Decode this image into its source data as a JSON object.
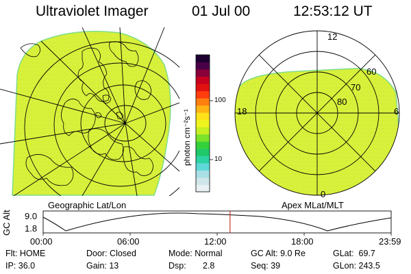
{
  "header": {
    "instrument": "Ultraviolet Imager",
    "date": "01 Jul 00",
    "time": "12:53:12 UT"
  },
  "panels": {
    "left_caption": "Geographic Lat/Lon",
    "right_caption": "Apex  MLat/MLT",
    "polar_labels": {
      "mlt_12": "12",
      "mlt_18": "18",
      "mlt_6": "6",
      "mlt_0": "0",
      "lat_60": "60",
      "lat_70": "70",
      "lat_80": "80"
    }
  },
  "colorbar": {
    "unit_label": "photon cm⁻²s⁻¹",
    "tick_100": "100",
    "tick_10": "10",
    "colors": [
      "#e8f0f2",
      "#cfe6ea",
      "#a9dfe4",
      "#5fd8d8",
      "#2ed3a3",
      "#1fc96a",
      "#36d13a",
      "#7be22a",
      "#c6ef22",
      "#eef51e",
      "#ffe21a",
      "#ffb414",
      "#ff7f10",
      "#ff3c0e",
      "#e0120f",
      "#c7001f",
      "#8a003a",
      "#4a0048",
      "#1c0030"
    ]
  },
  "orbit_plot": {
    "ylabel": "GC Alt",
    "ytick_top": "9.0",
    "ytick_bottom": "1.8",
    "xticks": [
      "00:00",
      "06:00",
      "12:00",
      "18:00",
      "23:59"
    ],
    "marker_time_hours": 12.89
  },
  "status": {
    "row1": {
      "flt": "Flt: HOME",
      "door": "Door: Closed",
      "mode": "Mode: Normal",
      "gc_alt": "GC Alt: 9.0 Re",
      "glat": "GLat:  69.7"
    },
    "row2": {
      "ip": "IP: 36.0",
      "gain": "Gain: 13",
      "dsp": "Dsp:       2.8",
      "seq": "Seq: 39",
      "glon": "GLon: 243.5"
    }
  },
  "colors": {
    "fill": "#d8f03a",
    "fill_edge": "#7fdc8a",
    "marker": "#c0392b"
  }
}
